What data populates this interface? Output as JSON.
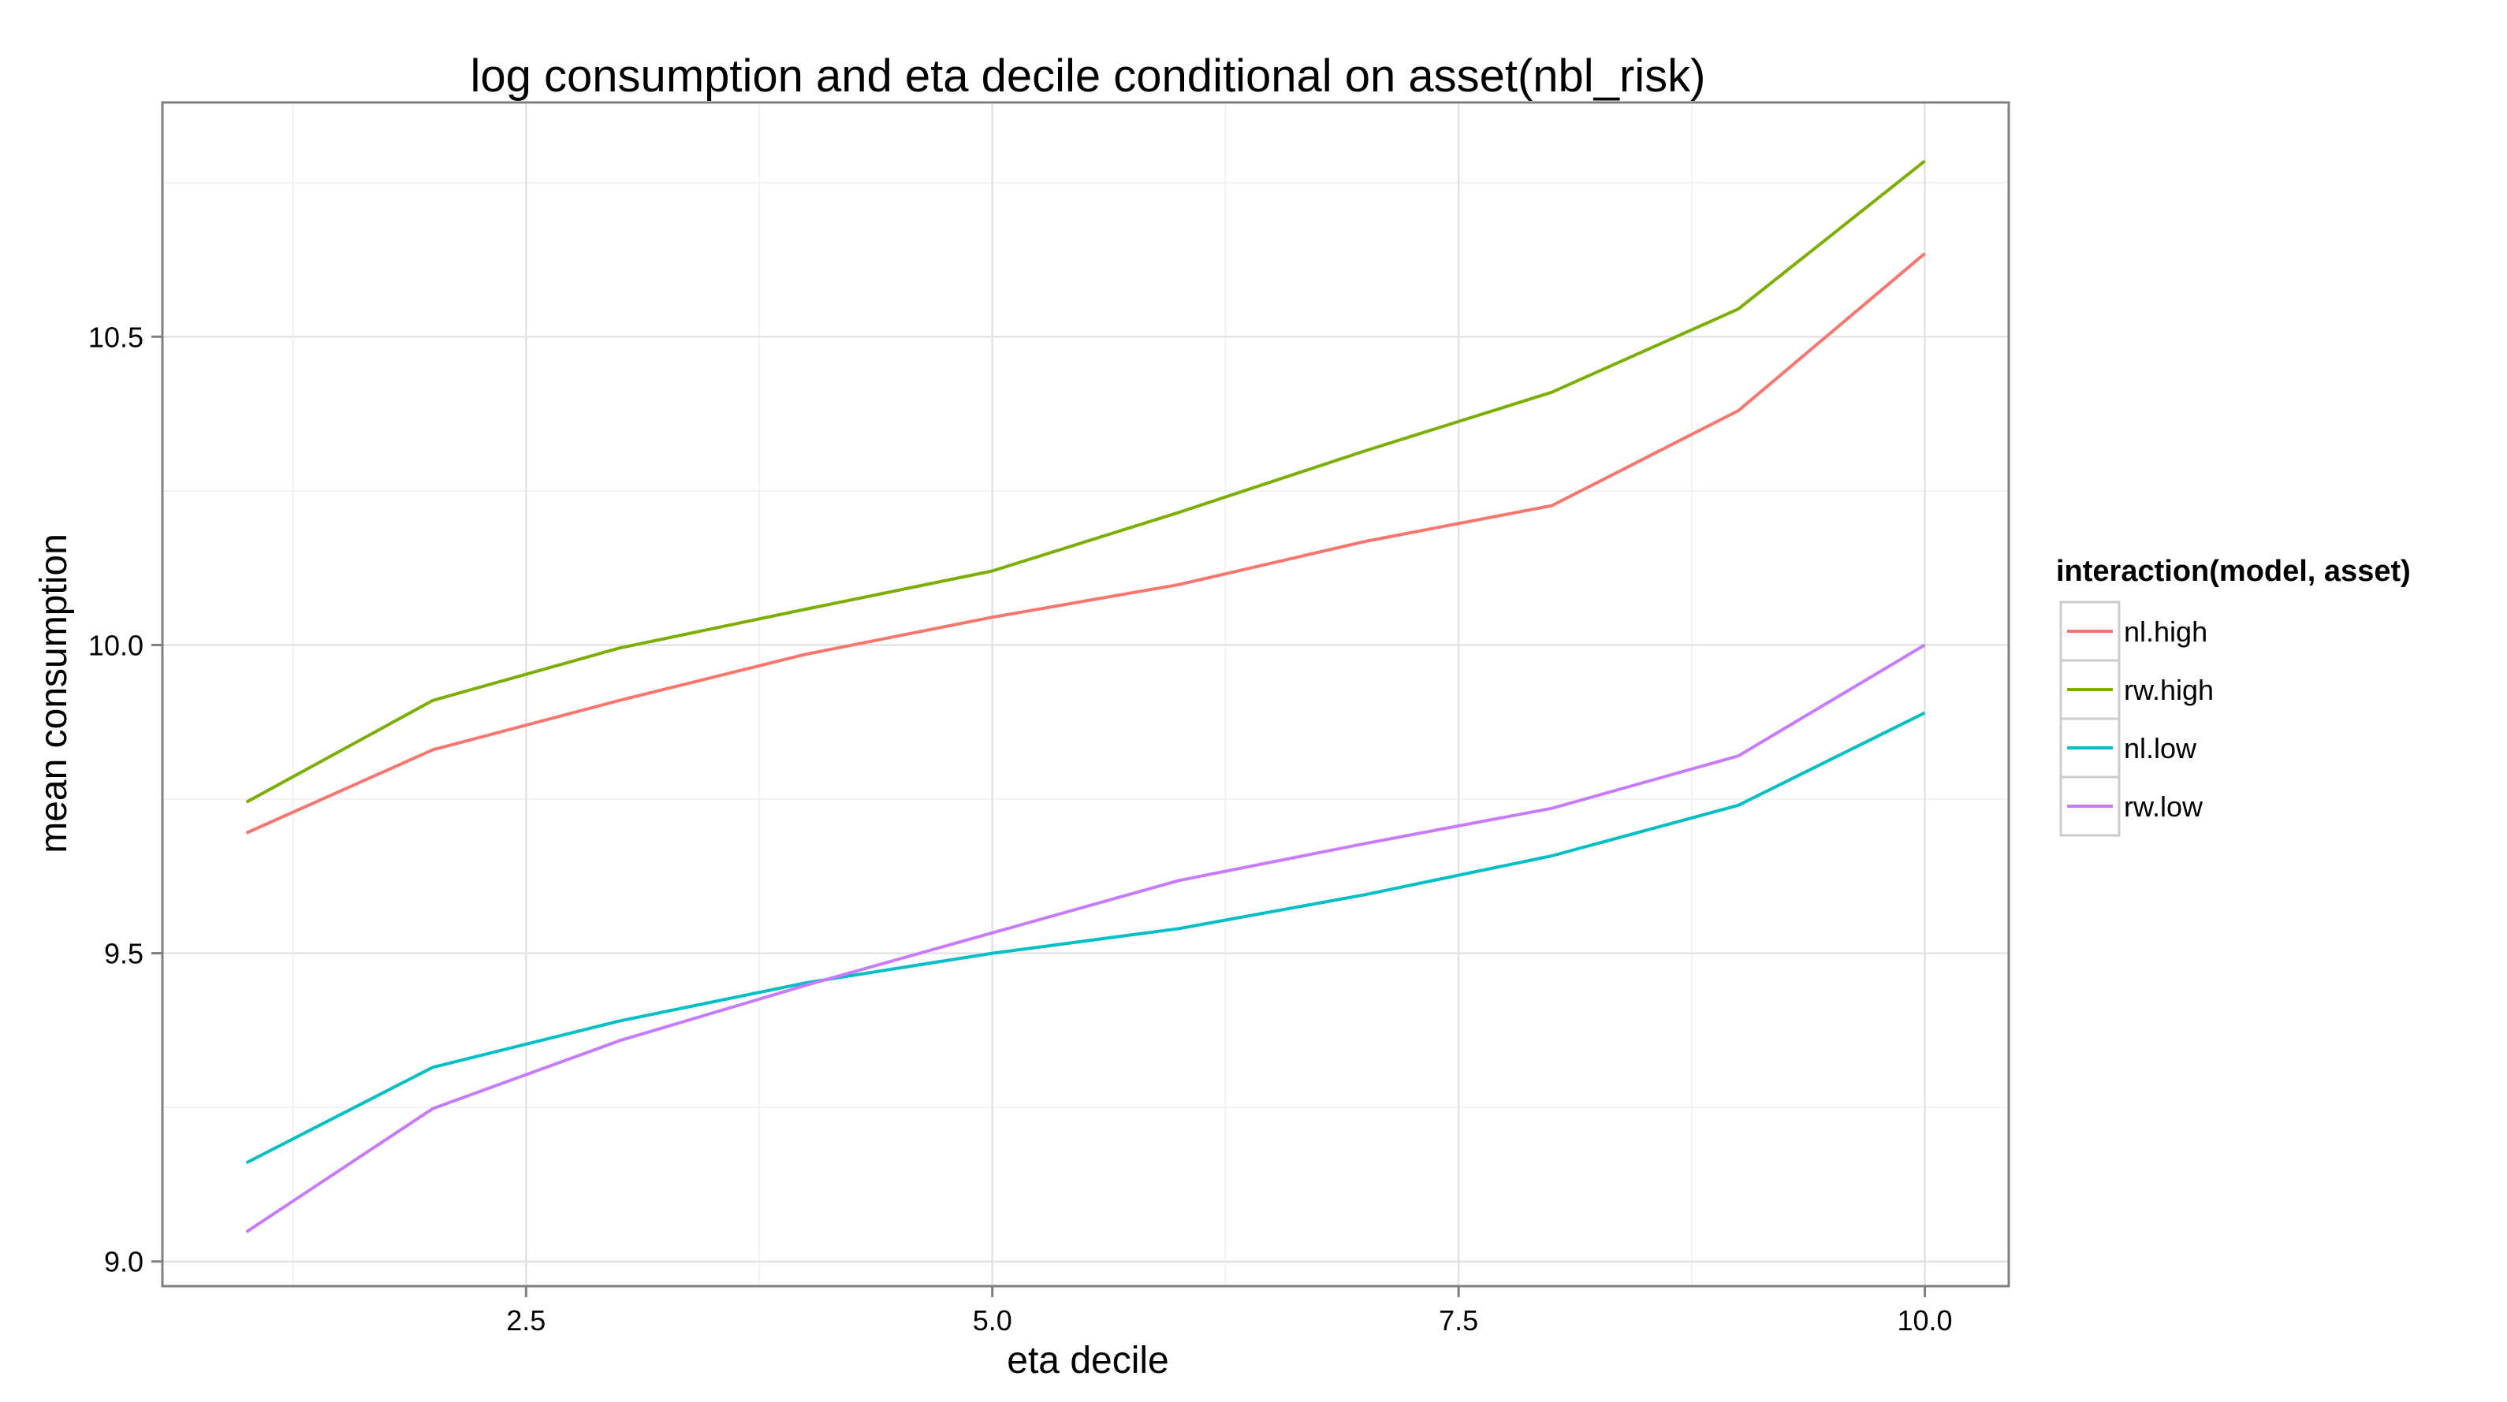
{
  "chart_data": {
    "type": "line",
    "title": "log consumption and eta decile conditional on asset(nbl_risk)",
    "xlabel": "eta decile",
    "ylabel": "mean consumption",
    "x": [
      1,
      2,
      3,
      4,
      5,
      6,
      7,
      8,
      9,
      10
    ],
    "xlim": [
      0.55,
      10.45
    ],
    "ylim": [
      8.96,
      10.88
    ],
    "x_ticks": [
      2.5,
      5.0,
      7.5,
      10.0
    ],
    "x_tick_labels": [
      "2.5",
      "5.0",
      "7.5",
      "10.0"
    ],
    "y_ticks": [
      9.0,
      9.5,
      10.0,
      10.5
    ],
    "y_tick_labels": [
      "9.0",
      "9.5",
      "10.0",
      "10.5"
    ],
    "grid": true,
    "legend": {
      "title": "interaction(model, asset)",
      "position": "right"
    },
    "series": [
      {
        "name": "nl.high",
        "color": "#F8766D",
        "values": [
          9.695,
          9.83,
          9.91,
          9.985,
          10.045,
          10.098,
          10.168,
          10.226,
          10.38,
          10.635
        ]
      },
      {
        "name": "rw.high",
        "color": "#7CAE00",
        "values": [
          9.745,
          9.91,
          9.995,
          10.058,
          10.12,
          10.215,
          10.315,
          10.41,
          10.545,
          10.785
        ]
      },
      {
        "name": "nl.low",
        "color": "#00BFC4",
        "values": [
          9.16,
          9.315,
          9.39,
          9.452,
          9.5,
          9.54,
          9.595,
          9.658,
          9.74,
          9.89
        ]
      },
      {
        "name": "rw.low",
        "color": "#C77CFF",
        "values": [
          9.048,
          9.248,
          9.358,
          9.448,
          9.533,
          9.618,
          9.678,
          9.735,
          9.82,
          10.0
        ]
      }
    ]
  }
}
